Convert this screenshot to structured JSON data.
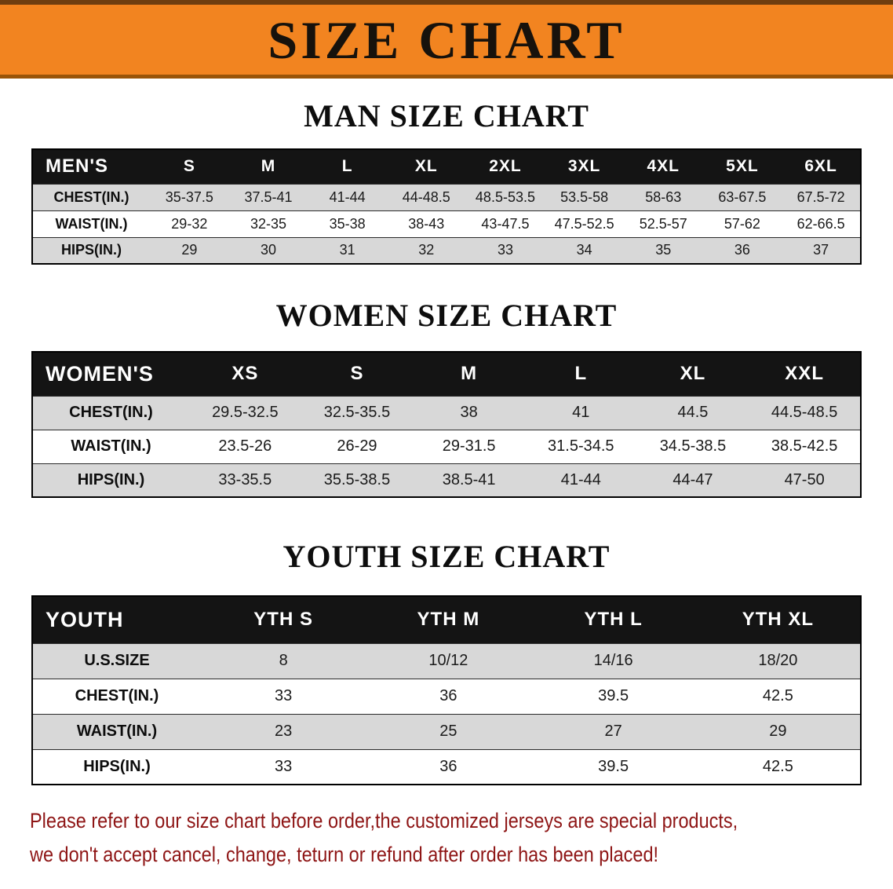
{
  "banner": {
    "title": "SIZE CHART"
  },
  "sections": [
    {
      "id": "men",
      "title": "MAN SIZE CHART",
      "table_label": "MEN'S",
      "columns": [
        "S",
        "M",
        "L",
        "XL",
        "2XL",
        "3XL",
        "4XL",
        "5XL",
        "6XL"
      ],
      "rows": [
        {
          "label": "CHEST(IN.)",
          "values": [
            "35-37.5",
            "37.5-41",
            "41-44",
            "44-48.5",
            "48.5-53.5",
            "53.5-58",
            "58-63",
            "63-67.5",
            "67.5-72"
          ]
        },
        {
          "label": "WAIST(IN.)",
          "values": [
            "29-32",
            "32-35",
            "35-38",
            "38-43",
            "43-47.5",
            "47.5-52.5",
            "52.5-57",
            "57-62",
            "62-66.5"
          ]
        },
        {
          "label": "HIPS(IN.)",
          "values": [
            "29",
            "30",
            "31",
            "32",
            "33",
            "34",
            "35",
            "36",
            "37"
          ]
        }
      ]
    },
    {
      "id": "women",
      "title": "WOMEN SIZE CHART",
      "table_label": "WOMEN'S",
      "columns": [
        "XS",
        "S",
        "M",
        "L",
        "XL",
        "XXL"
      ],
      "rows": [
        {
          "label": "CHEST(IN.)",
          "values": [
            "29.5-32.5",
            "32.5-35.5",
            "38",
            "41",
            "44.5",
            "44.5-48.5"
          ]
        },
        {
          "label": "WAIST(IN.)",
          "values": [
            "23.5-26",
            "26-29",
            "29-31.5",
            "31.5-34.5",
            "34.5-38.5",
            "38.5-42.5"
          ]
        },
        {
          "label": "HIPS(IN.)",
          "values": [
            "33-35.5",
            "35.5-38.5",
            "38.5-41",
            "41-44",
            "44-47",
            "47-50"
          ]
        }
      ]
    },
    {
      "id": "youth",
      "title": "YOUTH SIZE CHART",
      "table_label": "YOUTH",
      "columns": [
        "YTH S",
        "YTH M",
        "YTH L",
        "YTH XL"
      ],
      "rows": [
        {
          "label": "U.S.SIZE",
          "values": [
            "8",
            "10/12",
            "14/16",
            "18/20"
          ]
        },
        {
          "label": "CHEST(IN.)",
          "values": [
            "33",
            "36",
            "39.5",
            "42.5"
          ]
        },
        {
          "label": "WAIST(IN.)",
          "values": [
            "23",
            "25",
            "27",
            "29"
          ]
        },
        {
          "label": "HIPS(IN.)",
          "values": [
            "33",
            "36",
            "39.5",
            "42.5"
          ]
        }
      ]
    }
  ],
  "footer": {
    "line1": "Please refer to our size chart before order,the customized jerseys are special products,",
    "line2": "we don't accept cancel, change, teturn or refund after order has been placed!"
  },
  "colors": {
    "banner_bg": "#f28420",
    "table_header_bg": "#141414",
    "shaded_row_bg": "#d8d8d8",
    "footer_text": "#8e1515"
  }
}
